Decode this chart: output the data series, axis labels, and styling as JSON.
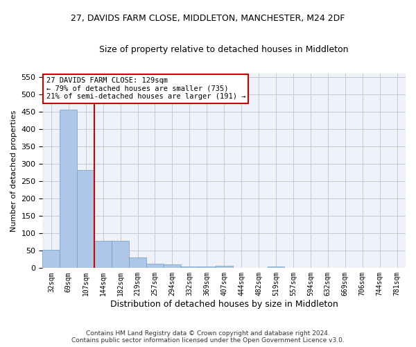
{
  "title": "27, DAVIDS FARM CLOSE, MIDDLETON, MANCHESTER, M24 2DF",
  "subtitle": "Size of property relative to detached houses in Middleton",
  "xlabel": "Distribution of detached houses by size in Middleton",
  "ylabel": "Number of detached properties",
  "bar_color": "#aec6e8",
  "bar_edge_color": "#6a9cc9",
  "vline_color": "#cc0000",
  "background_color": "#eef2f8",
  "categories": [
    "32sqm",
    "69sqm",
    "107sqm",
    "144sqm",
    "182sqm",
    "219sqm",
    "257sqm",
    "294sqm",
    "332sqm",
    "369sqm",
    "407sqm",
    "444sqm",
    "482sqm",
    "519sqm",
    "557sqm",
    "594sqm",
    "632sqm",
    "669sqm",
    "706sqm",
    "744sqm",
    "781sqm"
  ],
  "values": [
    52,
    456,
    282,
    78,
    78,
    30,
    13,
    10,
    5,
    5,
    6,
    0,
    0,
    5,
    0,
    0,
    0,
    0,
    0,
    0,
    0
  ],
  "annotation_text": "27 DAVIDS FARM CLOSE: 129sqm\n← 79% of detached houses are smaller (735)\n21% of semi-detached houses are larger (191) →",
  "annotation_box_color": "#ffffff",
  "annotation_box_edge": "#cc0000",
  "ylim": [
    0,
    560
  ],
  "yticks": [
    0,
    50,
    100,
    150,
    200,
    250,
    300,
    350,
    400,
    450,
    500,
    550
  ],
  "vline_index": 2.5,
  "footer_line1": "Contains HM Land Registry data © Crown copyright and database right 2024.",
  "footer_line2": "Contains public sector information licensed under the Open Government Licence v3.0."
}
